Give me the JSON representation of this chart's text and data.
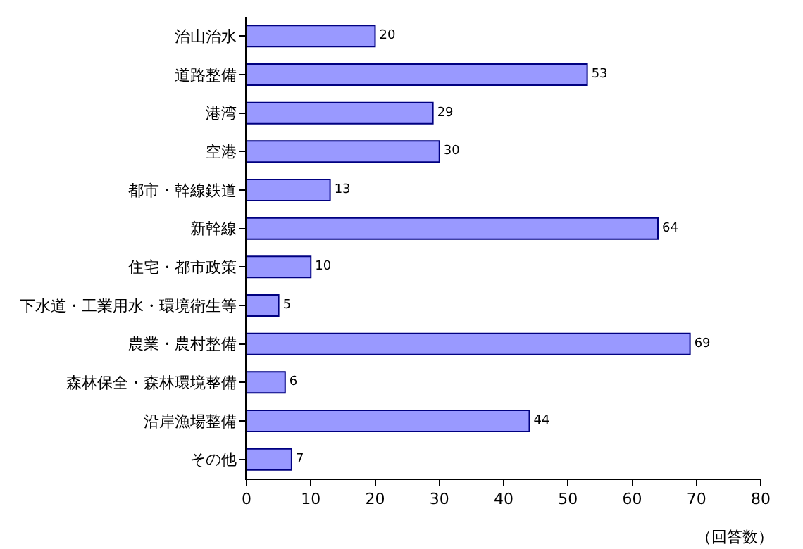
{
  "chart_data": {
    "type": "bar",
    "orientation": "horizontal",
    "xlabel": "（回答数）",
    "categories": [
      "治山治水",
      "道路整備",
      "港湾",
      "空港",
      "都市・幹線鉄道",
      "新幹線",
      "住宅・都市政策",
      "下水道・工業用水・環境衛生等",
      "農業・農村整備",
      "森林保全・森林環境整備",
      "沿岸漁場整備",
      "その他"
    ],
    "values": [
      20,
      53,
      29,
      30,
      13,
      64,
      10,
      5,
      69,
      6,
      44,
      7
    ],
    "color": "#9999ff",
    "data_labels": true,
    "grid": false,
    "legend": false,
    "xlim": [
      0,
      80
    ],
    "xticks": [
      0,
      10,
      20,
      30,
      40,
      50,
      60,
      70,
      80
    ]
  }
}
